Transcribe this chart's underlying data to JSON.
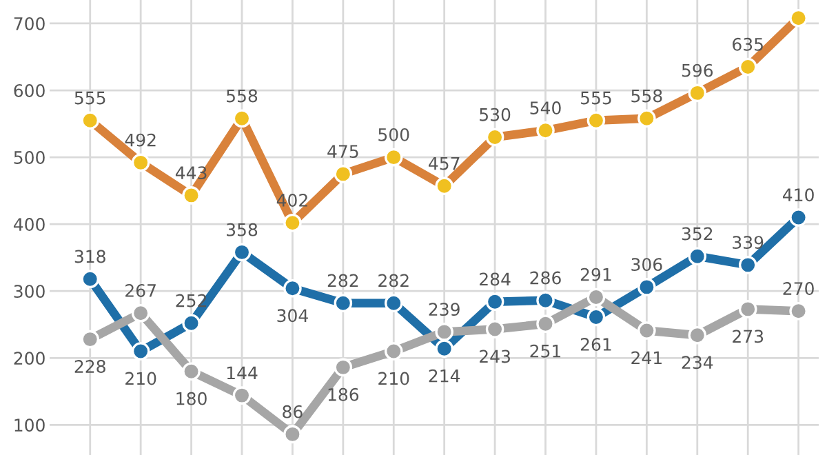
{
  "chart_data": {
    "type": "line",
    "categories": [
      null,
      null,
      null,
      null,
      null,
      null,
      null,
      null,
      null,
      null,
      null,
      null,
      null,
      null,
      null
    ],
    "series": [
      {
        "color": "#d9823b",
        "colors": [
          "#f0c020",
          "#f0c020",
          "#f0c020",
          "#f0c020",
          "#f0c020",
          "#f0c020",
          "#f0c020",
          "#f0c020",
          "#f0c020",
          "#f0c020",
          "#f0c020",
          "#f0c020",
          "#f0c020",
          "#f0c020",
          "#f0c020"
        ],
        "values": [
          555,
          492,
          443,
          558,
          402,
          475,
          500,
          457,
          530,
          540,
          555,
          558,
          596,
          635,
          708
        ],
        "value_labels": [
          "555",
          "492",
          "443",
          "558",
          "402",
          "475",
          "500",
          "457",
          "530",
          "540",
          "555",
          "558",
          "596",
          "635",
          null
        ]
      },
      {
        "color": "#1f6fa8",
        "values": [
          318,
          210,
          252,
          358,
          304,
          282,
          282,
          214,
          284,
          286,
          261,
          306,
          352,
          339,
          410
        ],
        "value_labels": [
          "318",
          "210",
          "252",
          "358",
          "304",
          "282",
          "282",
          "214",
          "284",
          "286",
          "261",
          "306",
          "352",
          "339",
          "410"
        ]
      },
      {
        "color": "#a6a6a6",
        "values": [
          228,
          267,
          180,
          144,
          86,
          186,
          210,
          239,
          243,
          251,
          291,
          241,
          234,
          273,
          270
        ],
        "value_labels": [
          "228",
          "267",
          "180",
          "144",
          "86",
          "186",
          "210",
          "239",
          "243",
          "251",
          "291",
          "241",
          "234",
          "273",
          "270"
        ]
      }
    ],
    "ylim": [
      55,
      735
    ],
    "yticks": [
      100,
      200,
      300,
      400,
      500,
      600,
      700
    ],
    "grid": true,
    "marker": "circle",
    "line_style": "solid",
    "tick_labels": "y"
  }
}
